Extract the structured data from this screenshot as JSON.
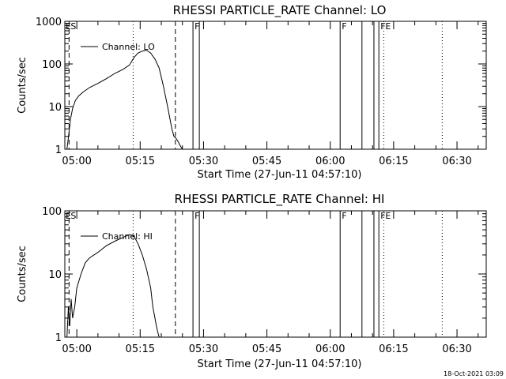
{
  "chart_data": [
    {
      "type": "line",
      "title": "RHESSI PARTICLE_RATE Channel: LO",
      "xlabel": "Start Time (27-Jun-11 04:57:10)",
      "ylabel": "Counts/sec",
      "yscale": "log",
      "ylim": [
        1,
        1000
      ],
      "xlim": [
        "04:57:10",
        "06:36:55"
      ],
      "y_ticks": [
        "1",
        "10",
        "100",
        "1000"
      ],
      "x_ticks": [
        "05:00",
        "05:15",
        "05:30",
        "05:45",
        "06:00",
        "06:15",
        "06:30"
      ],
      "legend": {
        "label": "Channel: LO",
        "position": "top-left"
      },
      "grid": false,
      "series": [
        {
          "name": "Channel: LO",
          "x": [
            "04:57:40",
            "04:58:10",
            "04:58:30",
            "04:59:00",
            "04:59:40",
            "05:00:30",
            "05:01:30",
            "05:03:00",
            "05:05:00",
            "05:07:00",
            "05:09:00",
            "05:11:00",
            "05:12:30",
            "05:13:30",
            "05:14:30",
            "05:15:30",
            "05:16:30",
            "05:17:30",
            "05:18:30",
            "05:19:30",
            "05:20:30",
            "05:21:30",
            "05:22:30",
            "05:23:00",
            "05:23:30",
            "05:24:00",
            "05:24:30",
            "05:25:00"
          ],
          "y": [
            1,
            2.5,
            5,
            9,
            14,
            18,
            22,
            28,
            35,
            45,
            60,
            75,
            95,
            140,
            180,
            200,
            210,
            180,
            130,
            80,
            30,
            10,
            3,
            2,
            1.8,
            1.5,
            1.2,
            1
          ]
        }
      ],
      "markers": [
        {
          "label": "S",
          "time": "04:58:10",
          "style": "dashed"
        },
        {
          "label": "",
          "time": "05:13:20",
          "style": "dotted"
        },
        {
          "label": "",
          "time": "05:23:20",
          "style": "dashed"
        },
        {
          "label": "F",
          "time": "05:27:30",
          "style": "solid"
        },
        {
          "label": "",
          "time": "05:29:00",
          "style": "solid"
        },
        {
          "label": "F",
          "time": "06:02:20",
          "style": "solid"
        },
        {
          "label": "",
          "time": "06:07:30",
          "style": "solid"
        },
        {
          "label": "",
          "time": "06:10:20",
          "style": "solid"
        },
        {
          "label": "F",
          "time": "06:11:30",
          "style": "solid"
        },
        {
          "label": "E",
          "time": "06:12:40",
          "style": "dotted"
        },
        {
          "label": "",
          "time": "06:26:30",
          "style": "dotted"
        }
      ],
      "left_edge_label": "E"
    },
    {
      "type": "line",
      "title": "RHESSI PARTICLE_RATE Channel: HI",
      "xlabel": "Start Time (27-Jun-11 04:57:10)",
      "ylabel": "Counts/sec",
      "yscale": "log",
      "ylim": [
        1,
        100
      ],
      "xlim": [
        "04:57:10",
        "06:36:55"
      ],
      "y_ticks": [
        "1",
        "10",
        "100"
      ],
      "x_ticks": [
        "05:00",
        "05:15",
        "05:30",
        "05:45",
        "06:00",
        "06:15",
        "06:30"
      ],
      "legend": {
        "label": "Channel: HI",
        "position": "top-left"
      },
      "grid": false,
      "series": [
        {
          "name": "Channel: HI",
          "x": [
            "04:57:40",
            "04:58:00",
            "04:58:20",
            "04:58:40",
            "04:59:00",
            "04:59:30",
            "05:00:00",
            "05:01:00",
            "05:02:00",
            "05:03:00",
            "05:05:00",
            "05:07:00",
            "05:09:00",
            "05:11:00",
            "05:12:30",
            "05:13:30",
            "05:14:30",
            "05:15:30",
            "05:16:30",
            "05:17:30",
            "05:18:00",
            "05:18:30",
            "05:18:50",
            "05:19:10",
            "05:19:30"
          ],
          "y": [
            1,
            3,
            1.5,
            4,
            2,
            3,
            6,
            10,
            15,
            18,
            22,
            28,
            33,
            38,
            42,
            40,
            30,
            20,
            12,
            6,
            3,
            2,
            1.5,
            1.2,
            1
          ]
        }
      ],
      "markers": [
        {
          "label": "S",
          "time": "04:58:10",
          "style": "dashed"
        },
        {
          "label": "",
          "time": "05:13:20",
          "style": "dotted"
        },
        {
          "label": "",
          "time": "05:23:20",
          "style": "dashed"
        },
        {
          "label": "F",
          "time": "05:27:30",
          "style": "solid"
        },
        {
          "label": "",
          "time": "05:29:00",
          "style": "solid"
        },
        {
          "label": "F",
          "time": "06:02:20",
          "style": "solid"
        },
        {
          "label": "",
          "time": "06:07:30",
          "style": "solid"
        },
        {
          "label": "",
          "time": "06:10:20",
          "style": "solid"
        },
        {
          "label": "F",
          "time": "06:11:30",
          "style": "solid"
        },
        {
          "label": "E",
          "time": "06:12:40",
          "style": "dotted"
        },
        {
          "label": "",
          "time": "06:26:30",
          "style": "dotted"
        }
      ],
      "left_edge_label": "E"
    }
  ],
  "footer": {
    "timestamp": "18-Oct-2021 03:09"
  }
}
